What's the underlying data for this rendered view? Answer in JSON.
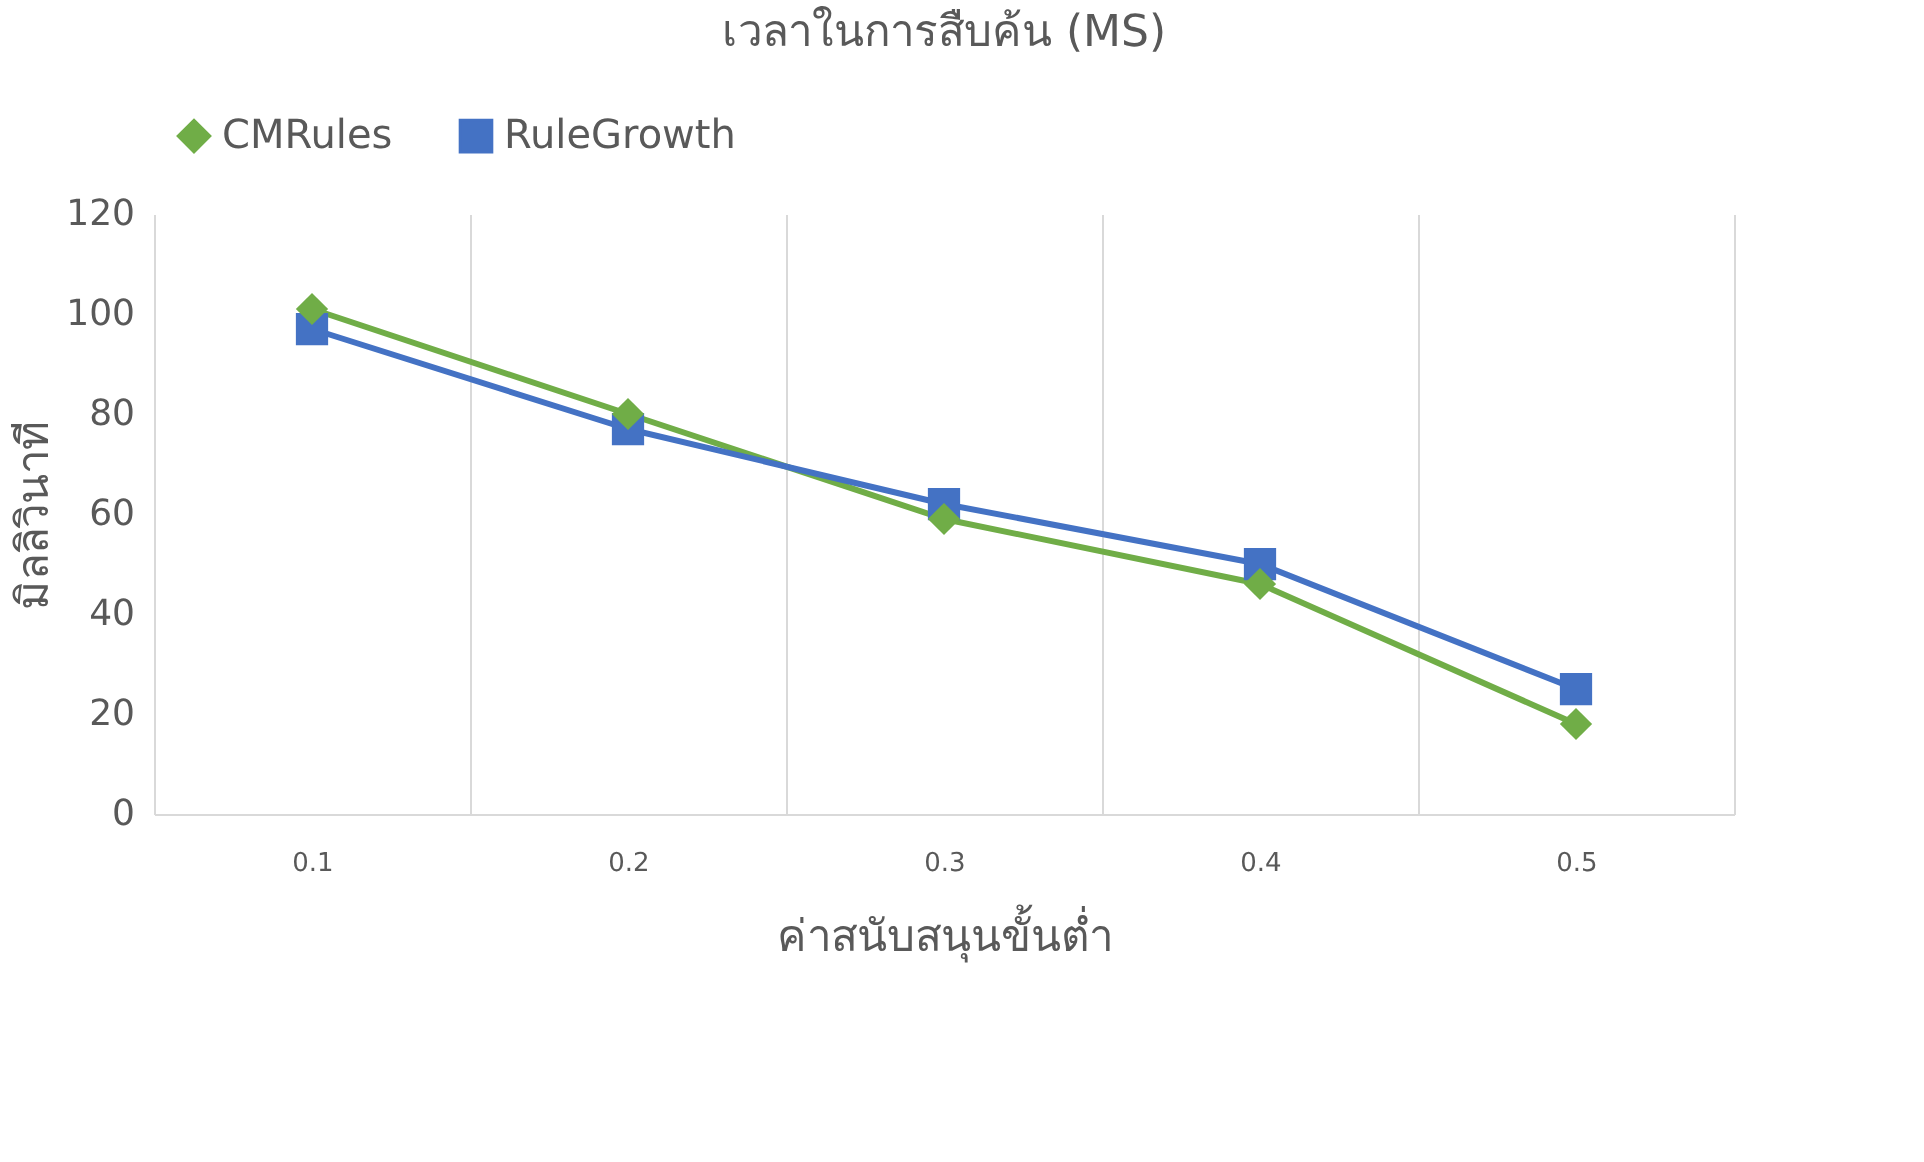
{
  "chart_data": {
    "type": "line",
    "title": "เวลาในการสืบค้น (MS)",
    "xlabel": "ค่าสนับสนุนขั้นต่ำ",
    "ylabel": "มิลลิวินาที",
    "categories": [
      "0.1",
      "0.2",
      "0.3",
      "0.4",
      "0.5"
    ],
    "series": [
      {
        "name": "CMRules",
        "color": "#70ad47",
        "marker": "diamond",
        "values": [
          101,
          80,
          59,
          46,
          18
        ]
      },
      {
        "name": "RuleGrowth",
        "color": "#4472c4",
        "marker": "square",
        "values": [
          97,
          77,
          62,
          50,
          25
        ]
      }
    ],
    "ylim": [
      0,
      120
    ],
    "yticks": [
      0,
      20,
      40,
      60,
      80,
      100,
      120
    ],
    "grid": "x",
    "legend": "top",
    "line_style": "solid"
  }
}
